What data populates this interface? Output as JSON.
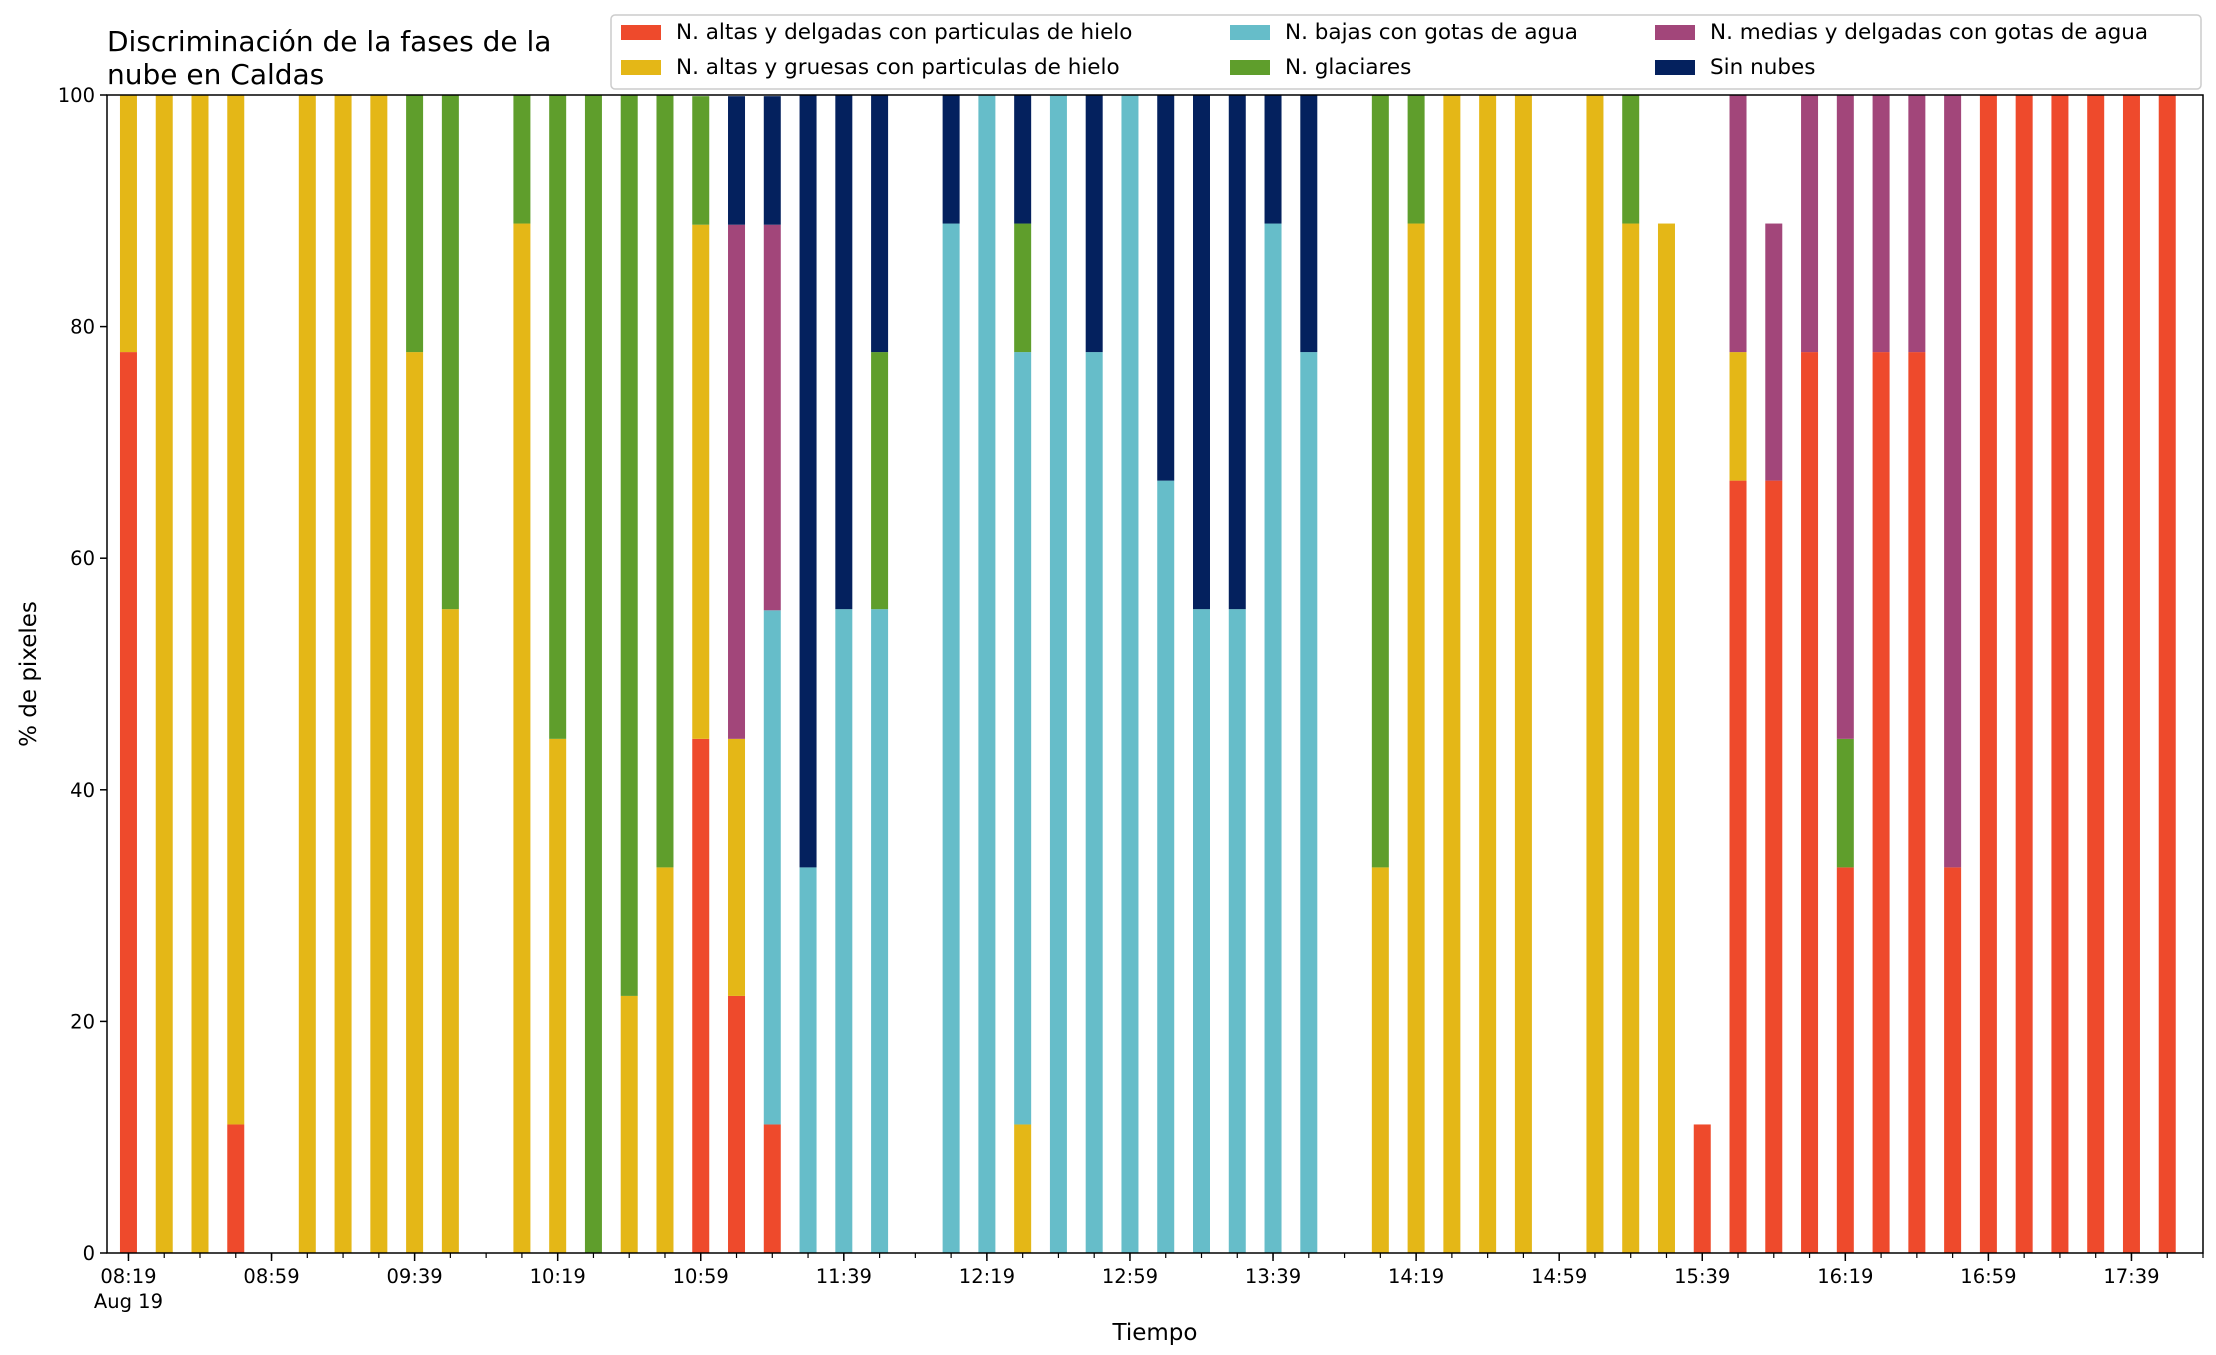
{
  "chart_data": {
    "type": "bar",
    "stacked": true,
    "title": "Discriminación de la fases de la\nnube en Caldas",
    "xlabel": "Tiempo",
    "ylabel": "% de pixeles",
    "ylim": [
      0,
      100
    ],
    "yticks": [
      0,
      20,
      40,
      60,
      80,
      100
    ],
    "xlim_minutes": [
      -6,
      580
    ],
    "x_tick_labels": [
      {
        "minutes": 0,
        "label": "08:19",
        "sublabel": "Aug 19"
      },
      {
        "minutes": 40,
        "label": "08:59"
      },
      {
        "minutes": 80,
        "label": "09:39"
      },
      {
        "minutes": 120,
        "label": "10:19"
      },
      {
        "minutes": 160,
        "label": "10:59"
      },
      {
        "minutes": 200,
        "label": "11:39"
      },
      {
        "minutes": 240,
        "label": "12:19"
      },
      {
        "minutes": 280,
        "label": "12:59"
      },
      {
        "minutes": 320,
        "label": "13:39"
      },
      {
        "minutes": 360,
        "label": "14:19"
      },
      {
        "minutes": 400,
        "label": "14:59"
      },
      {
        "minutes": 440,
        "label": "15:39"
      },
      {
        "minutes": 480,
        "label": "16:19"
      },
      {
        "minutes": 520,
        "label": "16:59"
      },
      {
        "minutes": 560,
        "label": "17:39"
      }
    ],
    "minor_tick_step_minutes": 10,
    "grid": false,
    "legend_position": "top-right",
    "legend_columns": 3,
    "x": [
      0,
      10,
      20,
      30,
      50,
      60,
      70,
      80,
      90,
      110,
      120,
      130,
      140,
      150,
      160,
      170,
      180,
      190,
      200,
      210,
      230,
      240,
      250,
      260,
      270,
      280,
      290,
      300,
      310,
      320,
      330,
      350,
      360,
      370,
      380,
      390,
      410,
      420,
      430,
      440,
      450,
      460,
      470,
      480,
      490,
      500,
      510,
      520,
      530,
      540,
      550,
      560,
      570
    ],
    "series": [
      {
        "name": "N. altas y delgadas con particulas de hielo",
        "color": "#EE4A2C",
        "values": [
          77.8,
          0,
          0,
          11.1,
          0,
          0,
          0,
          0,
          0,
          0,
          0,
          0,
          0,
          0,
          44.4,
          22.2,
          11.1,
          0,
          0,
          0,
          0,
          0,
          0,
          0,
          0,
          0,
          0,
          0,
          0,
          0,
          0,
          0,
          0,
          0,
          0,
          0,
          0,
          0,
          0,
          11.1,
          66.7,
          66.7,
          77.8,
          33.3,
          77.8,
          77.8,
          33.3,
          100,
          100,
          100,
          100,
          100,
          100
        ]
      },
      {
        "name": "N. altas y gruesas con particulas de hielo",
        "color": "#E4B717",
        "values": [
          22.2,
          100,
          100,
          88.9,
          100,
          100,
          100,
          77.8,
          55.6,
          88.9,
          44.4,
          0,
          22.2,
          33.3,
          44.4,
          22.2,
          0,
          0,
          0,
          0,
          0,
          0,
          11.1,
          0,
          0,
          0,
          0,
          0,
          0,
          0,
          0,
          33.3,
          88.9,
          100,
          100,
          100,
          100,
          88.9,
          88.9,
          0,
          11.1,
          0,
          0,
          0,
          0,
          0,
          0,
          0,
          0,
          0,
          0,
          0,
          0
        ]
      },
      {
        "name": "N. bajas con gotas de agua",
        "color": "#66BDC9",
        "values": [
          0,
          0,
          0,
          0,
          0,
          0,
          0,
          0,
          0,
          0,
          0,
          0,
          0,
          0,
          0,
          0,
          44.4,
          33.3,
          55.6,
          55.6,
          88.9,
          100,
          66.7,
          100,
          77.8,
          100,
          66.7,
          55.6,
          55.6,
          88.9,
          77.8,
          0,
          0,
          0,
          0,
          0,
          0,
          0,
          0,
          0,
          0,
          0,
          0,
          0,
          0,
          0,
          0,
          0,
          0,
          0,
          0,
          0,
          0
        ]
      },
      {
        "name": "N. glaciares",
        "color": "#5F9E2C",
        "values": [
          0,
          0,
          0,
          0,
          0,
          0,
          0,
          22.2,
          44.4,
          11.1,
          55.6,
          100,
          77.8,
          66.7,
          11.1,
          0,
          0,
          0,
          0,
          22.2,
          0,
          0,
          11.1,
          0,
          0,
          0,
          0,
          0,
          0,
          0,
          0,
          66.7,
          11.1,
          0,
          0,
          0,
          0,
          11.1,
          0,
          0,
          0,
          0,
          0,
          11.1,
          0,
          0,
          0,
          0,
          0,
          0,
          0,
          0,
          0
        ]
      },
      {
        "name": "N. medias y delgadas con gotas de agua",
        "color": "#A2467A",
        "values": [
          0,
          0,
          0,
          0,
          0,
          0,
          0,
          0,
          0,
          0,
          0,
          0,
          0,
          0,
          0,
          44.4,
          33.3,
          0,
          0,
          0,
          0,
          0,
          0,
          0,
          0,
          0,
          0,
          0,
          0,
          0,
          0,
          0,
          0,
          0,
          0,
          0,
          0,
          0,
          0,
          0,
          22.2,
          22.2,
          22.2,
          55.6,
          22.2,
          22.2,
          66.7,
          0,
          0,
          0,
          0,
          0,
          0
        ]
      },
      {
        "name": "Sin nubes",
        "color": "#04215E",
        "values": [
          0,
          0,
          0,
          0,
          0,
          0,
          0,
          0,
          0,
          0,
          0,
          0,
          0,
          0,
          0,
          11.1,
          11.1,
          66.7,
          44.4,
          22.2,
          11.1,
          0,
          11.1,
          0,
          22.2,
          0,
          33.3,
          44.4,
          44.4,
          11.1,
          22.2,
          0,
          0,
          0,
          0,
          0,
          0,
          0,
          0,
          0,
          0,
          0,
          0,
          0,
          0,
          0,
          0,
          0,
          0,
          0,
          0,
          0,
          0
        ]
      }
    ]
  }
}
